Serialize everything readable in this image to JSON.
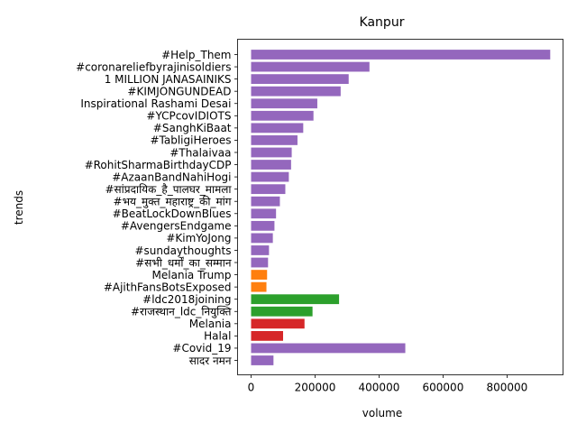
{
  "chart_data": {
    "type": "bar",
    "orientation": "horizontal",
    "title": "Kanpur",
    "xlabel": "volume",
    "ylabel": "trends",
    "xlim": [
      0,
      975000
    ],
    "xticks": [
      0,
      200000,
      400000,
      600000,
      800000
    ],
    "grid": false,
    "legend": "none",
    "categories": [
      "#Help_Them",
      "#coronareliefbyrajinisoldiers",
      "1 MILLION JANASAINIKS",
      "#KIMJONGUNDEAD",
      "Inspirational Rashami Desai",
      "#YCPcovIDIOTS",
      "#SanghKiBaat",
      "#TabligiHeroes",
      "#Thalaivaa",
      "#RohitSharmaBirthdayCDP",
      "#AzaanBandNahiHogi",
      "#सांप्रदायिक_है_पालघर_मामला",
      "#भय_मुक्त_महाराष्ट्र_की_मांग",
      "#BeatLockDownBlues",
      "#AvengersEndgame",
      "#KimYoJong",
      "#sundaythoughts",
      "#सभी_धर्मों_का_सम्मान",
      "Melania Trump",
      "#AjithFansBotsExposed",
      "#ldc2018joining",
      "#राजस्थान_ldc_नियुक्ति",
      "Melania",
      "Halal",
      "#Covid_19",
      "सादर नमन"
    ],
    "values": [
      935000,
      370000,
      305000,
      280000,
      207000,
      195000,
      163000,
      145000,
      127000,
      125000,
      118000,
      107000,
      90000,
      78000,
      73000,
      68000,
      56000,
      53000,
      50000,
      48000,
      275000,
      192000,
      167000,
      100000,
      482000,
      70000
    ],
    "colors": [
      "#9467bd",
      "#9467bd",
      "#9467bd",
      "#9467bd",
      "#9467bd",
      "#9467bd",
      "#9467bd",
      "#9467bd",
      "#9467bd",
      "#9467bd",
      "#9467bd",
      "#9467bd",
      "#9467bd",
      "#9467bd",
      "#9467bd",
      "#9467bd",
      "#9467bd",
      "#9467bd",
      "#ff7f0e",
      "#ff7f0e",
      "#2ca02c",
      "#2ca02c",
      "#d62728",
      "#d62728",
      "#9467bd",
      "#9467bd"
    ]
  }
}
